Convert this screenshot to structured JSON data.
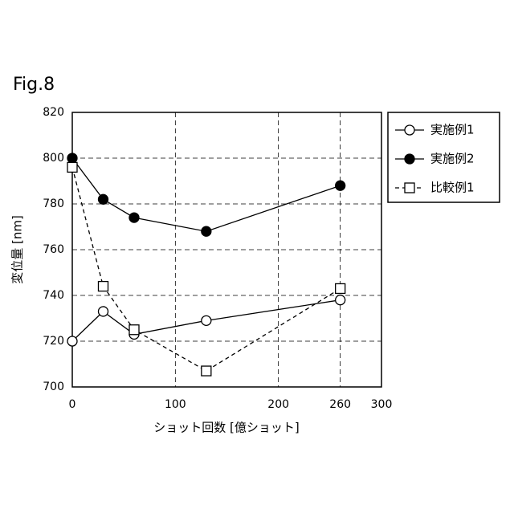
{
  "chart_data": {
    "type": "line",
    "figure_label": "Fig.8",
    "x_label": "ショット回数 [億ショット]",
    "y_label": "変位量 [nm]",
    "x": [
      0,
      30,
      60,
      130,
      260
    ],
    "series": [
      {
        "name": "実施例1",
        "color": "#000000",
        "marker": "circle-open",
        "dashed": false,
        "values": [
          720,
          733,
          723,
          729,
          738
        ]
      },
      {
        "name": "実施例2",
        "color": "#000000",
        "marker": "circle-filled",
        "dashed": false,
        "values": [
          800,
          782,
          774,
          768,
          788
        ]
      },
      {
        "name": "比較例1",
        "color": "#000000",
        "marker": "square-open",
        "dashed": true,
        "values": [
          796,
          744,
          725,
          707,
          743
        ]
      }
    ],
    "xlim": [
      0,
      300
    ],
    "xticks": [
      0,
      100,
      200,
      260,
      300
    ],
    "ylim": [
      700,
      820
    ],
    "yticks": [
      700,
      720,
      740,
      760,
      780,
      800,
      820
    ],
    "grid": true,
    "legend": "outside-right-top"
  }
}
